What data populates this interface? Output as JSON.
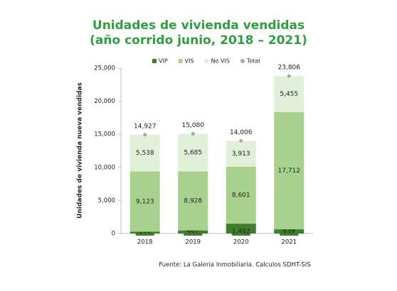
{
  "chart_data": {
    "type": "stacked-bar",
    "title": "Unidades de vivienda vendidas",
    "subtitle": "(año corrido junio, 2018 – 2021)",
    "y_label": "Unidades de vivienda nueva vendidas",
    "source": "Fuente: La Galeria Inmobiliaria. Calculos SDHT-SIS",
    "categories": [
      "2018",
      "2019",
      "2020",
      "2021"
    ],
    "series": [
      {
        "name": "VIP",
        "color": "#3f7d2c",
        "values": [
          266,
          467,
          1492,
          639
        ],
        "value_labels": [
          "266",
          "467",
          "1,492",
          "639"
        ]
      },
      {
        "name": "VIS",
        "color": "#a9d18e",
        "values": [
          9123,
          8928,
          8601,
          17712
        ],
        "value_labels": [
          "9,123",
          "8,928",
          "8,601",
          "17,712"
        ]
      },
      {
        "name": "No VIS",
        "color": "#e2efd9",
        "values": [
          5538,
          5685,
          3913,
          5455
        ],
        "value_labels": [
          "5,538",
          "5,685",
          "3,913",
          "5,455"
        ]
      }
    ],
    "total": {
      "name": "Total",
      "color": "#a6a6a6",
      "values": [
        14927,
        15080,
        14006,
        23806
      ],
      "value_labels": [
        "14,927",
        "15,080",
        "14,006",
        "23,806"
      ]
    },
    "ylim": [
      0,
      25000
    ],
    "yticks": [
      0,
      {
        "value": 5000,
        "label": "5,000"
      },
      {
        "value": 10000,
        "label": "10,000"
      },
      {
        "value": 15000,
        "label": "15,000"
      },
      {
        "value": 20000,
        "label": "20,000"
      },
      {
        "value": 25000,
        "label": "25,000"
      }
    ],
    "legend": "top"
  }
}
